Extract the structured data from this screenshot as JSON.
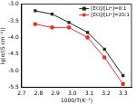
{
  "chart_data": {
    "type": "line",
    "x_label": "1000/T(K⁻¹)",
    "y_label": "lg(σ/(S cm⁻¹))",
    "x": [
      2.78,
      2.88,
      2.98,
      3.09,
      3.19,
      3.3
    ],
    "series": [
      {
        "name": "[EO]/[Li⁺]=8:1",
        "color": "#222222",
        "marker": "square",
        "values": [
          -3.2,
          -3.3,
          -3.55,
          -3.85,
          -4.35,
          -5.15
        ]
      },
      {
        "name": "[EO]/[Li⁺]=20:1",
        "color": "#e8302a",
        "marker": "circle",
        "values": [
          -3.6,
          -3.7,
          -3.7,
          -4.0,
          -4.6,
          -5.4
        ]
      }
    ],
    "xlim": [
      2.7,
      3.35
    ],
    "xticks": [
      2.7,
      2.8,
      2.9,
      {
        "value": 3,
        "label": "3.0"
      },
      3.1,
      3.2,
      3.3
    ],
    "ylim": [
      -5.5,
      -3.0
    ],
    "yticks": [
      {
        "value": -3,
        "label": "-3.0"
      },
      -3.5,
      {
        "value": -4,
        "label": "-4.0"
      },
      -4.5,
      {
        "value": -5,
        "label": "-5.0"
      },
      -5.5
    ],
    "grid": false,
    "legend": "upper right"
  }
}
